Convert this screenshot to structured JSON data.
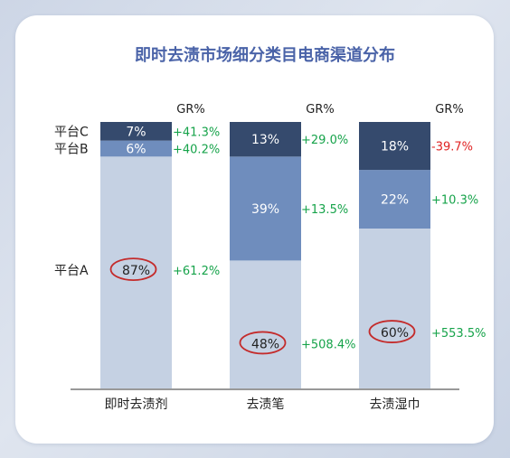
{
  "title": "即时去渍市场细分类目电商渠道分布",
  "gr_header": "GR%",
  "chart_data": {
    "type": "bar",
    "stacked": true,
    "percent": true,
    "categories": [
      "即时去渍剂",
      "去渍笔",
      "去渍湿巾"
    ],
    "series": [
      {
        "name": "平台A",
        "values": [
          87,
          48,
          60
        ],
        "labels": [
          "87%",
          "48%",
          "60%"
        ],
        "growth": [
          "+61.2%",
          "+508.4%",
          "+553.5%"
        ]
      },
      {
        "name": "平台B",
        "values": [
          6,
          39,
          22
        ],
        "labels": [
          "6%",
          "39%",
          "22%"
        ],
        "growth": [
          "+40.2%",
          "+13.5%",
          "+10.3%"
        ]
      },
      {
        "name": "平台C",
        "values": [
          7,
          13,
          18
        ],
        "labels": [
          "7%",
          "13%",
          "18%"
        ],
        "growth": [
          "+41.3%",
          "+29.0%",
          "-39.7%"
        ]
      }
    ],
    "highlighted_series": "平台A",
    "ylim": [
      0,
      100
    ],
    "grid": false,
    "legend": "left"
  },
  "colors": {
    "series": [
      "#c5d1e3",
      "#6f8dbd",
      "#354a6d"
    ],
    "series_text": [
      "#222222",
      "#ffffff",
      "#ffffff"
    ],
    "growth_positive": "#16a34a",
    "growth_negative": "#e02424",
    "highlight_circle": "#c42b2b",
    "title": "#4a63a8"
  }
}
